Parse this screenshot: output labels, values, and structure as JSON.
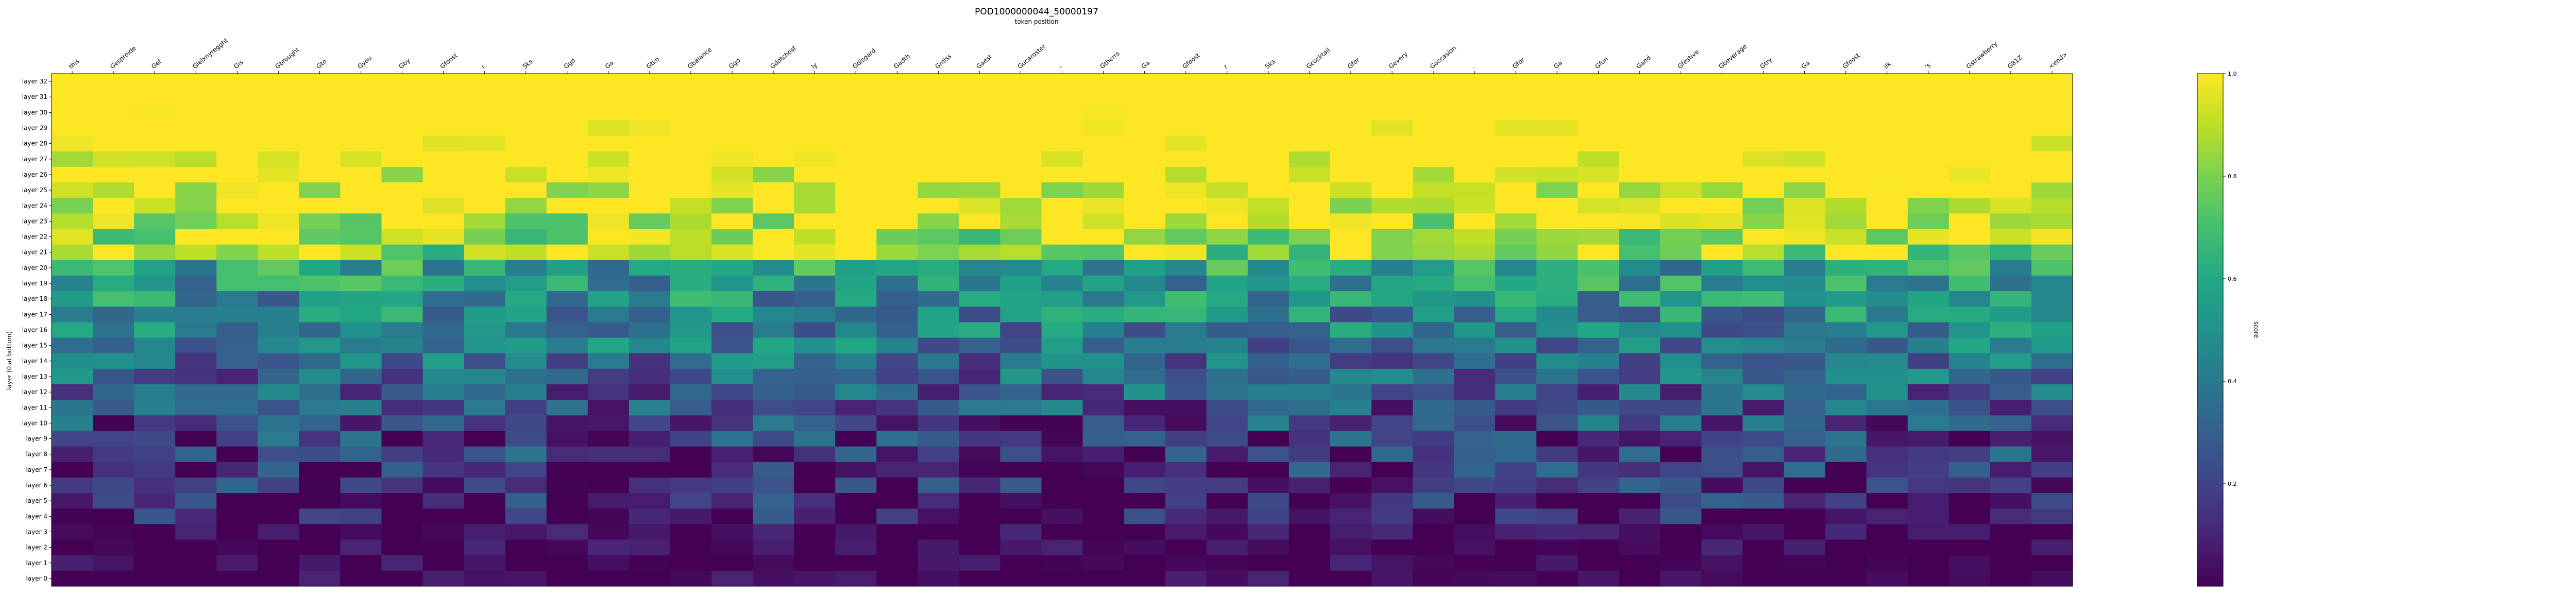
{
  "chart_data": {
    "type": "heatmap",
    "title": "POD1000000044_50000197",
    "subtitle": "token position",
    "ylabel": "layer (0 at bottom)",
    "colorbar_label": "score",
    "colormap": "viridis",
    "value_range": [
      0,
      1
    ],
    "colorbar_ticks": [
      "0.2",
      "0.4",
      "0.6",
      "0.8",
      "1.0"
    ],
    "colorbar_tick_values": [
      0.2,
      0.4,
      0.6,
      0.8,
      1.0
    ],
    "tokens": [
      "this",
      "Gesproide",
      "Gef",
      "Gleixnyregght",
      "Gis",
      "Gbrought",
      "Gto",
      "Gyou",
      "Gby",
      "Gfoost",
      "r",
      "Sks",
      "Ggo",
      "Gа",
      "Gtko",
      "Gbalance",
      "Ggo",
      "Gdotchost",
      "ly",
      "Gdisgard",
      "Gadth",
      "Gmiss",
      "Gaest",
      "Gucaroster",
      "-",
      "Gtherrs",
      "Gа",
      "Gfoost",
      "r",
      "Sks",
      "Gcocktail",
      "Gfor",
      "Gevery",
      "Goccasion",
      ".",
      "Gfor",
      "Gа",
      "Gfun",
      "Gand",
      "Gfestive",
      "Gbeverage",
      "Gtry",
      "Gа",
      "Gfoost",
      "ilk",
      "'s",
      "Gstrawberry",
      "G81Z",
      "<end>"
    ],
    "layers": [
      "layer 32",
      "layer 31",
      "layer 30",
      "layer 29",
      "layer 28",
      "layer 27",
      "layer 26",
      "layer 25",
      "layer 24",
      "layer 23",
      "layer 22",
      "layer 21",
      "layer 20",
      "layer 19",
      "layer 18",
      "layer 17",
      "layer 16",
      "layer 15",
      "layer 14",
      "layer 13",
      "layer 12",
      "layer 11",
      "layer 10",
      "layer 9",
      "layer 8",
      "layer 7",
      "layer 6",
      "layer 5",
      "layer 4",
      "layer 3",
      "layer 2",
      "layer 1",
      "layer 0"
    ],
    "grid": false,
    "colorbar_position": "right"
  }
}
